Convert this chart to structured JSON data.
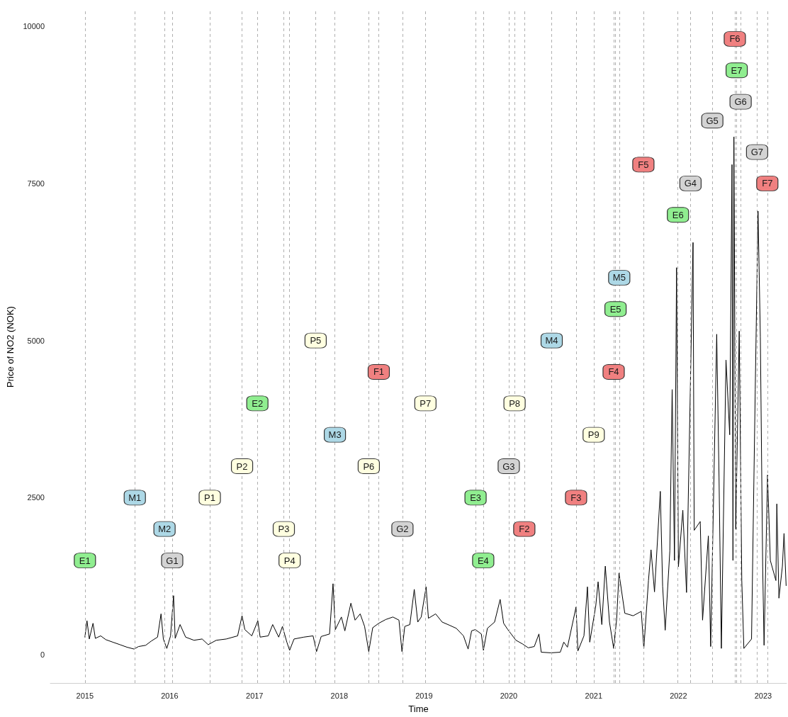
{
  "chart_data": {
    "type": "line",
    "xlabel": "Time",
    "ylabel": "Price of NO2 (NOK)",
    "xlim": [
      "2014-08-05",
      "2023-04-12"
    ],
    "xticks": [
      {
        "value": "2015-01-01",
        "label": "2015"
      },
      {
        "value": "2016-01-01",
        "label": "2016"
      },
      {
        "value": "2017-01-01",
        "label": "2017"
      },
      {
        "value": "2018-01-01",
        "label": "2018"
      },
      {
        "value": "2019-01-01",
        "label": "2019"
      },
      {
        "value": "2020-01-01",
        "label": "2020"
      },
      {
        "value": "2021-01-01",
        "label": "2021"
      },
      {
        "value": "2022-01-01",
        "label": "2022"
      },
      {
        "value": "2023-01-01",
        "label": "2023"
      }
    ],
    "ylim": [
      -450,
      10250
    ],
    "yticks": [
      0,
      2500,
      5000,
      7500,
      10000
    ],
    "grid": false,
    "series": [
      {
        "color": "#000000",
        "marker": "none",
        "line_style": "solid",
        "x": [
          "2015-01-01",
          "2015-01-10",
          "2015-01-20",
          "2015-02-05",
          "2015-02-15",
          "2015-03-10",
          "2015-04-01",
          "2015-05-01",
          "2015-06-01",
          "2015-07-01",
          "2015-08-01",
          "2015-08-20",
          "2015-09-20",
          "2015-10-15",
          "2015-11-10",
          "2015-11-25",
          "2015-12-05",
          "2015-12-20",
          "2016-01-05",
          "2016-01-18",
          "2016-01-25",
          "2016-02-15",
          "2016-03-10",
          "2016-04-15",
          "2016-05-20",
          "2016-06-15",
          "2016-07-20",
          "2016-09-01",
          "2016-10-20",
          "2016-11-08",
          "2016-11-20",
          "2016-12-20",
          "2017-01-15",
          "2017-01-25",
          "2017-03-01",
          "2017-03-20",
          "2017-04-15",
          "2017-05-01",
          "2017-05-20",
          "2017-06-01",
          "2017-06-20",
          "2017-08-01",
          "2017-09-10",
          "2017-09-25",
          "2017-10-15",
          "2017-11-20",
          "2017-12-05",
          "2017-12-15",
          "2018-01-10",
          "2018-01-25",
          "2018-02-20",
          "2018-03-10",
          "2018-04-01",
          "2018-04-20",
          "2018-05-08",
          "2018-05-25",
          "2018-06-20",
          "2018-07-20",
          "2018-08-20",
          "2018-09-15",
          "2018-09-28",
          "2018-10-10",
          "2018-11-01",
          "2018-11-20",
          "2018-12-05",
          "2018-12-20",
          "2019-01-10",
          "2019-01-20",
          "2019-02-20",
          "2019-03-20",
          "2019-04-20",
          "2019-05-20",
          "2019-06-20",
          "2019-07-10",
          "2019-07-25",
          "2019-08-10",
          "2019-09-05",
          "2019-09-14",
          "2019-10-01",
          "2019-11-01",
          "2019-11-25",
          "2019-12-10",
          "2019-12-28",
          "2020-02-01",
          "2020-03-01",
          "2020-03-25",
          "2020-04-20",
          "2020-05-10",
          "2020-05-20",
          "2020-07-01",
          "2020-08-10",
          "2020-08-25",
          "2020-09-10",
          "2020-10-17",
          "2020-10-25",
          "2020-11-20",
          "2020-12-05",
          "2020-12-15",
          "2021-01-10",
          "2021-01-20",
          "2021-02-05",
          "2021-02-20",
          "2021-03-10",
          "2021-03-28",
          "2021-04-10",
          "2021-04-20",
          "2021-05-15",
          "2021-06-20",
          "2021-07-25",
          "2021-08-05",
          "2021-08-25",
          "2021-09-05",
          "2021-09-20",
          "2021-10-15",
          "2021-10-25",
          "2021-11-05",
          "2021-11-25",
          "2021-12-05",
          "2021-12-15",
          "2021-12-24",
          "2022-01-01",
          "2022-01-20",
          "2022-02-05",
          "2022-03-05",
          "2022-03-10",
          "2022-04-05",
          "2022-04-15",
          "2022-05-10",
          "2022-05-20",
          "2022-06-15",
          "2022-06-25",
          "2022-07-05",
          "2022-07-25",
          "2022-08-10",
          "2022-08-20",
          "2022-08-24",
          "2022-08-28",
          "2022-09-05",
          "2022-09-20",
          "2022-10-01",
          "2022-10-10",
          "2022-11-12",
          "2022-11-28",
          "2022-12-10",
          "2022-12-20",
          "2022-12-30",
          "2023-01-05",
          "2023-01-20",
          "2023-02-01",
          "2023-02-25",
          "2023-03-01",
          "2023-03-10",
          "2023-03-25",
          "2023-04-01",
          "2023-04-10"
        ],
        "values": [
          280,
          540,
          250,
          500,
          260,
          300,
          240,
          200,
          160,
          120,
          90,
          130,
          150,
          220,
          280,
          650,
          250,
          100,
          300,
          940,
          260,
          480,
          280,
          230,
          250,
          160,
          230,
          250,
          300,
          620,
          400,
          300,
          540,
          280,
          300,
          480,
          280,
          450,
          200,
          70,
          250,
          280,
          300,
          50,
          290,
          330,
          1130,
          400,
          600,
          380,
          820,
          550,
          650,
          450,
          50,
          430,
          500,
          560,
          600,
          550,
          50,
          450,
          480,
          1040,
          520,
          600,
          1080,
          580,
          650,
          520,
          470,
          420,
          300,
          90,
          380,
          400,
          330,
          70,
          420,
          520,
          880,
          500,
          400,
          230,
          170,
          110,
          130,
          330,
          40,
          30,
          40,
          200,
          120,
          760,
          60,
          300,
          1080,
          200,
          780,
          1160,
          480,
          1410,
          520,
          100,
          570,
          1300,
          660,
          620,
          690,
          100,
          1180,
          1670,
          1000,
          2600,
          1090,
          390,
          1650,
          4220,
          1500,
          6160,
          1400,
          2300,
          990,
          6560,
          1980,
          2120,
          550,
          1890,
          130,
          5100,
          2820,
          100,
          4690,
          3500,
          7800,
          1500,
          8240,
          2000,
          5150,
          1180,
          100,
          250,
          4220,
          7060,
          5060,
          1410,
          150,
          2860,
          1500,
          1180,
          2400,
          900,
          1410,
          1930,
          1100
        ]
      },
      {
        "type": "scatter",
        "color": "#90ee90",
        "marker": "square",
        "x": [
          "2015-01-01",
          "2017-01-13",
          "2019-08-11",
          "2019-09-13",
          "2021-04-05",
          "2021-12-30",
          "2022-09-09"
        ],
        "values": [
          1500,
          4000,
          2500,
          1500,
          5500,
          7000,
          9300
        ],
        "value_labels": [
          "E1",
          "E2",
          "E3",
          "E4",
          "E5",
          "E6",
          "E7"
        ]
      },
      {
        "type": "scatter",
        "color": "#add8e6",
        "marker": "square",
        "x": [
          "2015-08-04",
          "2015-12-10",
          "2017-12-13",
          "2020-07-04",
          "2021-04-21"
        ],
        "values": [
          2500,
          2000,
          3500,
          5000,
          6000
        ],
        "value_labels": [
          "M1",
          "M2",
          "M3",
          "M4",
          "M5"
        ]
      },
      {
        "type": "scatter",
        "color": "#d3d3d3",
        "marker": "square",
        "x": [
          "2016-01-12",
          "2018-09-30",
          "2020-01-01",
          "2022-02-22",
          "2022-05-27",
          "2022-09-26",
          "2022-12-06"
        ],
        "values": [
          1500,
          2000,
          3000,
          7500,
          8500,
          8800,
          8000
        ],
        "value_labels": [
          "G1",
          "G2",
          "G3",
          "G4",
          "G5",
          "G6",
          "G7"
        ]
      },
      {
        "type": "scatter",
        "color": "#ffffe0",
        "marker": "square",
        "x": [
          "2016-06-22",
          "2016-11-08",
          "2017-05-07",
          "2017-06-01",
          "2017-09-21",
          "2018-05-08",
          "2019-01-07",
          "2020-01-26",
          "2021-01-01"
        ],
        "values": [
          2500,
          3000,
          2000,
          1500,
          5000,
          3000,
          4000,
          4000,
          3500
        ],
        "value_labels": [
          "P1",
          "P2",
          "P3",
          "P4",
          "P5",
          "P6",
          "P7",
          "P8",
          "P9"
        ]
      },
      {
        "type": "scatter",
        "color": "#f08080",
        "marker": "square",
        "x": [
          "2018-06-20",
          "2020-03-08",
          "2020-10-17",
          "2021-03-28",
          "2021-08-03",
          "2022-09-01",
          "2023-01-19"
        ],
        "values": [
          4500,
          2000,
          2500,
          4500,
          7800,
          9800,
          7500
        ],
        "value_labels": [
          "F1",
          "F2",
          "F3",
          "F4",
          "F5",
          "F6",
          "F7"
        ]
      }
    ],
    "ref_lines": [
      {
        "axis": "x",
        "value": "2015-01-01",
        "color": "#a6a6a6",
        "line_style": "dashed"
      },
      {
        "axis": "x",
        "value": "2015-08-04",
        "color": "#a6a6a6",
        "line_style": "dashed"
      },
      {
        "axis": "x",
        "value": "2015-12-10",
        "color": "#a6a6a6",
        "line_style": "dashed"
      },
      {
        "axis": "x",
        "value": "2016-01-12",
        "color": "#a6a6a6",
        "line_style": "dashed"
      },
      {
        "axis": "x",
        "value": "2016-06-22",
        "color": "#a6a6a6",
        "line_style": "dashed"
      },
      {
        "axis": "x",
        "value": "2016-11-08",
        "color": "#a6a6a6",
        "line_style": "dashed"
      },
      {
        "axis": "x",
        "value": "2017-01-13",
        "color": "#a6a6a6",
        "line_style": "dashed"
      },
      {
        "axis": "x",
        "value": "2017-05-07",
        "color": "#a6a6a6",
        "line_style": "dashed"
      },
      {
        "axis": "x",
        "value": "2017-06-01",
        "color": "#a6a6a6",
        "line_style": "dashed"
      },
      {
        "axis": "x",
        "value": "2017-09-21",
        "color": "#a6a6a6",
        "line_style": "dashed"
      },
      {
        "axis": "x",
        "value": "2017-12-13",
        "color": "#a6a6a6",
        "line_style": "dashed"
      },
      {
        "axis": "x",
        "value": "2018-05-08",
        "color": "#a6a6a6",
        "line_style": "dashed"
      },
      {
        "axis": "x",
        "value": "2018-06-20",
        "color": "#a6a6a6",
        "line_style": "dashed"
      },
      {
        "axis": "x",
        "value": "2018-09-30",
        "color": "#a6a6a6",
        "line_style": "dashed"
      },
      {
        "axis": "x",
        "value": "2019-01-07",
        "color": "#a6a6a6",
        "line_style": "dashed"
      },
      {
        "axis": "x",
        "value": "2019-08-11",
        "color": "#a6a6a6",
        "line_style": "dashed"
      },
      {
        "axis": "x",
        "value": "2019-09-13",
        "color": "#a6a6a6",
        "line_style": "dashed"
      },
      {
        "axis": "x",
        "value": "2020-01-01",
        "color": "#a6a6a6",
        "line_style": "dashed"
      },
      {
        "axis": "x",
        "value": "2020-01-26",
        "color": "#a6a6a6",
        "line_style": "dashed"
      },
      {
        "axis": "x",
        "value": "2020-03-08",
        "color": "#a6a6a6",
        "line_style": "dashed"
      },
      {
        "axis": "x",
        "value": "2020-07-04",
        "color": "#a6a6a6",
        "line_style": "dashed"
      },
      {
        "axis": "x",
        "value": "2020-10-17",
        "color": "#a6a6a6",
        "line_style": "dashed"
      },
      {
        "axis": "x",
        "value": "2021-01-01",
        "color": "#a6a6a6",
        "line_style": "dashed"
      },
      {
        "axis": "x",
        "value": "2021-03-28",
        "color": "#a6a6a6",
        "line_style": "dashed"
      },
      {
        "axis": "x",
        "value": "2021-04-05",
        "color": "#a6a6a6",
        "line_style": "dashed"
      },
      {
        "axis": "x",
        "value": "2021-04-21",
        "color": "#a6a6a6",
        "line_style": "dashed"
      },
      {
        "axis": "x",
        "value": "2021-08-03",
        "color": "#a6a6a6",
        "line_style": "dashed"
      },
      {
        "axis": "x",
        "value": "2021-12-30",
        "color": "#a6a6a6",
        "line_style": "dashed"
      },
      {
        "axis": "x",
        "value": "2022-02-22",
        "color": "#a6a6a6",
        "line_style": "dashed"
      },
      {
        "axis": "x",
        "value": "2022-05-27",
        "color": "#a6a6a6",
        "line_style": "dashed"
      },
      {
        "axis": "x",
        "value": "2022-09-01",
        "color": "#a6a6a6",
        "line_style": "dashed"
      },
      {
        "axis": "x",
        "value": "2022-09-09",
        "color": "#a6a6a6",
        "line_style": "dashed"
      },
      {
        "axis": "x",
        "value": "2022-09-26",
        "color": "#a6a6a6",
        "line_style": "dashed"
      },
      {
        "axis": "x",
        "value": "2022-12-06",
        "color": "#a6a6a6",
        "line_style": "dashed"
      },
      {
        "axis": "x",
        "value": "2023-01-19",
        "color": "#a6a6a6",
        "line_style": "dashed"
      }
    ]
  }
}
